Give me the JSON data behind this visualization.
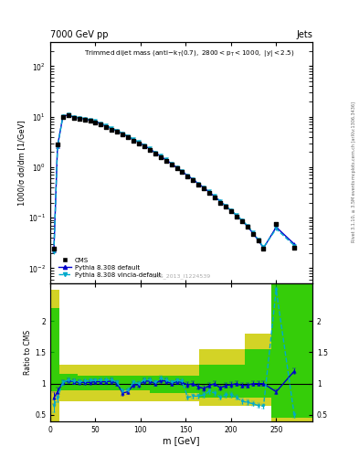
{
  "title_top": "7000 GeV pp",
  "title_right": "Jets",
  "ylabel_main": "1000/σ dσ/dm [1/GeV]",
  "ylabel_ratio": "Ratio to CMS",
  "xlabel": "m [GeV]",
  "watermark": "CMS_2013_I1224539",
  "right_label": "Rivet 3.1.10, ≥ 3.5M events",
  "right_label2": "mcplots.cern.ch [arXiv:1306.3436]",
  "cms_x": [
    4,
    8,
    14,
    20,
    26,
    32,
    38,
    44,
    50,
    56,
    62,
    68,
    74,
    80,
    86,
    92,
    98,
    104,
    110,
    116,
    122,
    128,
    134,
    140,
    146,
    152,
    158,
    164,
    170,
    176,
    182,
    188,
    194,
    200,
    206,
    212,
    218,
    224,
    230,
    236,
    250,
    270
  ],
  "cms_y": [
    0.024,
    2.8,
    10.0,
    10.5,
    9.5,
    9.2,
    8.8,
    8.3,
    7.8,
    7.0,
    6.3,
    5.6,
    5.0,
    4.4,
    3.9,
    3.4,
    3.0,
    2.6,
    2.2,
    1.9,
    1.6,
    1.35,
    1.15,
    0.95,
    0.8,
    0.67,
    0.56,
    0.46,
    0.38,
    0.31,
    0.25,
    0.2,
    0.165,
    0.133,
    0.107,
    0.085,
    0.065,
    0.048,
    0.035,
    0.024,
    0.075,
    0.025
  ],
  "py_default_x": [
    4,
    8,
    14,
    20,
    26,
    32,
    38,
    44,
    50,
    56,
    62,
    68,
    74,
    80,
    86,
    92,
    98,
    104,
    110,
    116,
    122,
    128,
    134,
    140,
    146,
    152,
    158,
    164,
    170,
    176,
    182,
    188,
    194,
    200,
    206,
    212,
    218,
    224,
    230,
    236,
    250,
    270
  ],
  "py_default_y": [
    0.022,
    2.6,
    10.2,
    10.8,
    9.8,
    9.4,
    9.0,
    8.5,
    8.0,
    7.2,
    6.5,
    5.8,
    5.2,
    4.6,
    4.0,
    3.5,
    3.1,
    2.7,
    2.3,
    1.95,
    1.65,
    1.4,
    1.18,
    0.98,
    0.82,
    0.68,
    0.57,
    0.47,
    0.39,
    0.32,
    0.26,
    0.21,
    0.17,
    0.138,
    0.111,
    0.088,
    0.068,
    0.05,
    0.036,
    0.025,
    0.065,
    0.03
  ],
  "py_vincia_x": [
    4,
    8,
    14,
    20,
    26,
    32,
    38,
    44,
    50,
    56,
    62,
    68,
    74,
    80,
    86,
    92,
    98,
    104,
    110,
    116,
    122,
    128,
    134,
    140,
    146,
    152,
    158,
    164,
    170,
    176,
    182,
    188,
    194,
    200,
    206,
    212,
    218,
    224,
    230,
    236,
    250,
    270
  ],
  "py_vincia_y": [
    0.021,
    2.5,
    10.3,
    11.0,
    10.0,
    9.6,
    9.2,
    8.7,
    8.2,
    7.4,
    6.7,
    5.9,
    5.3,
    4.7,
    4.1,
    3.6,
    3.15,
    2.75,
    2.35,
    1.98,
    1.68,
    1.42,
    1.2,
    1.0,
    0.83,
    0.69,
    0.58,
    0.48,
    0.4,
    0.33,
    0.27,
    0.215,
    0.173,
    0.14,
    0.112,
    0.09,
    0.07,
    0.052,
    0.037,
    0.026,
    0.06,
    0.028
  ],
  "ratio_x": [
    4,
    8,
    14,
    20,
    26,
    32,
    38,
    44,
    50,
    56,
    62,
    68,
    74,
    80,
    86,
    92,
    98,
    104,
    110,
    116,
    122,
    128,
    134,
    140,
    146,
    152,
    158,
    164,
    170,
    176,
    182,
    188,
    194,
    200,
    206,
    212,
    218,
    224,
    230,
    236,
    250,
    270
  ],
  "ratio_py_default": [
    0.77,
    0.87,
    1.02,
    1.05,
    1.03,
    1.02,
    1.02,
    1.02,
    1.03,
    1.03,
    1.03,
    1.04,
    1.0,
    0.85,
    0.87,
    0.98,
    0.98,
    1.04,
    1.04,
    1.0,
    1.05,
    1.04,
    1.0,
    1.03,
    1.02,
    0.98,
    1.0,
    0.95,
    0.92,
    0.97,
    1.0,
    0.93,
    0.97,
    0.98,
    1.0,
    0.97,
    0.97,
    1.0,
    1.0,
    1.0,
    0.87,
    1.2
  ],
  "ratio_py_vincia": [
    0.65,
    0.78,
    1.02,
    1.06,
    1.04,
    1.03,
    1.04,
    1.05,
    1.05,
    1.06,
    1.06,
    1.06,
    1.02,
    0.88,
    0.9,
    1.02,
    1.0,
    1.06,
    1.06,
    1.02,
    1.08,
    1.06,
    1.02,
    1.05,
    1.04,
    0.78,
    0.8,
    0.8,
    0.82,
    0.88,
    0.85,
    0.78,
    0.82,
    0.82,
    0.78,
    0.72,
    0.7,
    0.68,
    0.65,
    0.64,
    2.5,
    0.5
  ],
  "band_x_edges": [
    0,
    10,
    30,
    110,
    165,
    215,
    245,
    290
  ],
  "band_yellow_lo": [
    0.4,
    0.72,
    0.72,
    0.72,
    0.65,
    0.65,
    0.4,
    0.4
  ],
  "band_yellow_hi": [
    2.5,
    1.3,
    1.3,
    1.3,
    1.55,
    1.8,
    3.0,
    3.0
  ],
  "band_green_lo": [
    0.88,
    0.9,
    0.9,
    0.85,
    0.78,
    0.78,
    0.45,
    0.45
  ],
  "band_green_hi": [
    2.2,
    1.15,
    1.12,
    1.12,
    1.3,
    1.55,
    2.8,
    2.8
  ],
  "color_cms": "#000000",
  "color_default": "#0000cc",
  "color_vincia": "#00aacc",
  "color_green": "#00cc00",
  "color_yellow": "#cccc00",
  "color_bg": "#ffffff"
}
